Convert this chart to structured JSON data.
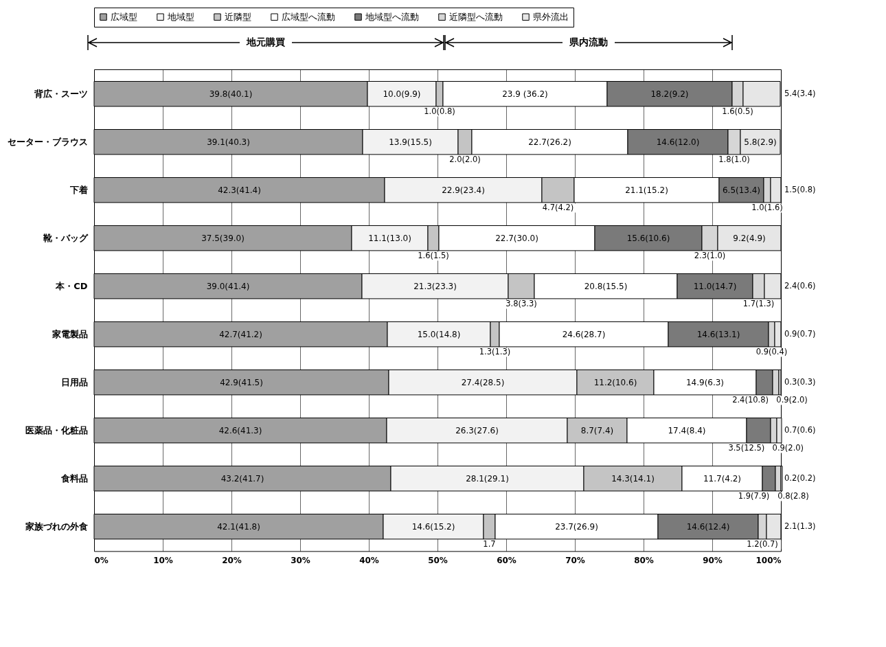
{
  "chart_data": {
    "type": "bar",
    "orientation": "horizontal",
    "stacked": true,
    "categories": [
      "背広・スーツ",
      "セーター・ブラウス",
      "下着",
      "靴・バッグ",
      "本・CD",
      "家電製品",
      "日用品",
      "医薬品・化粧品",
      "食料品",
      "家族づれの外食"
    ],
    "series": [
      {
        "name": "広域型",
        "color": "#a0a0a0",
        "values": [
          39.8,
          39.1,
          42.3,
          37.5,
          39.0,
          42.7,
          42.9,
          42.6,
          43.2,
          42.1
        ],
        "value_labels": [
          "39.8(40.1)",
          "39.1(40.3)",
          "42.3(41.4)",
          "37.5(39.0)",
          "39.0(41.4)",
          "42.7(41.2)",
          "42.9(41.5)",
          "42.6(41.3)",
          "43.2(41.7)",
          "42.1(41.8)"
        ]
      },
      {
        "name": "地域型",
        "color": "#f2f2f2",
        "values": [
          10.0,
          13.9,
          22.9,
          11.1,
          21.3,
          15.0,
          27.4,
          26.3,
          28.1,
          14.6
        ],
        "value_labels": [
          "10.0(9.9)",
          "13.9(15.5)",
          "22.9(23.4)",
          "11.1(13.0)",
          "21.3(23.3)",
          "15.0(14.8)",
          "27.4(28.5)",
          "26.3(27.6)",
          "28.1(29.1)",
          "14.6(15.2)"
        ]
      },
      {
        "name": "近隣型",
        "color": "#c4c4c4",
        "values": [
          1.0,
          2.0,
          4.7,
          1.6,
          3.8,
          1.3,
          11.2,
          8.7,
          14.3,
          1.7
        ],
        "value_labels": [
          "1.0(0.8)",
          "2.0(2.0)",
          "4.7(4.2)",
          "1.6(1.5)",
          "3.8(3.3)",
          "1.3(1.3)",
          "11.2(10.6)",
          "8.7(7.4)",
          "14.3(14.1)",
          "1.7"
        ]
      },
      {
        "name": "広域型へ流動",
        "color": "#ffffff",
        "values": [
          23.9,
          22.7,
          21.1,
          22.7,
          20.8,
          24.6,
          14.9,
          17.4,
          11.7,
          23.7
        ],
        "value_labels": [
          "23.9 (36.2)",
          "22.7(26.2)",
          "21.1(15.2)",
          "22.7(30.0)",
          "20.8(15.5)",
          "24.6(28.7)",
          "14.9(6.3)",
          "17.4(8.4)",
          "11.7(4.2)",
          "23.7(26.9)"
        ]
      },
      {
        "name": "地域型へ流動",
        "color": "#7a7a7a",
        "values": [
          18.2,
          14.6,
          6.5,
          15.6,
          11.0,
          14.6,
          2.4,
          3.5,
          1.9,
          14.6
        ],
        "value_labels": [
          "18.2(9.2)",
          "14.6(12.0)",
          "6.5(13.4)",
          "15.6(10.6)",
          "11.0(14.7)",
          "14.6(13.1)",
          "2.4(10.8)",
          "3.5(12.5)",
          "1.9(7.9)",
          "14.6(12.4)"
        ]
      },
      {
        "name": "近隣型へ流動",
        "color": "#d6d6d6",
        "values": [
          1.6,
          1.8,
          1.0,
          2.3,
          1.7,
          0.9,
          0.9,
          0.9,
          0.8,
          1.2
        ],
        "value_labels": [
          "1.6(0.5)",
          "1.8(1.0)",
          "1.0(1.6)",
          "2.3(1.0)",
          "1.7(1.3)",
          "0.9(0.4)",
          "0.9(2.0)",
          "0.9(2.0)",
          "0.8(2.8)",
          "1.2(0.7)"
        ]
      },
      {
        "name": "県外流出",
        "color": "#e6e6e6",
        "values": [
          5.4,
          5.8,
          1.5,
          9.2,
          2.4,
          0.9,
          0.3,
          0.7,
          0.2,
          2.1
        ],
        "value_labels": [
          "5.4(3.4)",
          "5.8(2.9)",
          "1.5(0.8)",
          "9.2(4.9)",
          "2.4(0.6)",
          "0.9(0.7)",
          "0.3(0.3)",
          "0.7(0.6)",
          "0.2(0.2)",
          "2.1(1.3)"
        ]
      }
    ],
    "xlim": [
      0,
      100
    ],
    "xticks": [
      {
        "value": 0,
        "label": "0%"
      },
      {
        "value": 10,
        "label": "10%"
      },
      {
        "value": 20,
        "label": "20%"
      },
      {
        "value": 30,
        "label": "30%"
      },
      {
        "value": 40,
        "label": "40%"
      },
      {
        "value": 50,
        "label": "50%"
      },
      {
        "value": 60,
        "label": "60%"
      },
      {
        "value": 70,
        "label": "70%"
      },
      {
        "value": 80,
        "label": "80%"
      },
      {
        "value": 90,
        "label": "90%"
      },
      {
        "value": 100,
        "label": "100%"
      }
    ],
    "grid": "x",
    "legend": "top",
    "annotations": [
      "地元購買",
      "県内流動"
    ]
  }
}
